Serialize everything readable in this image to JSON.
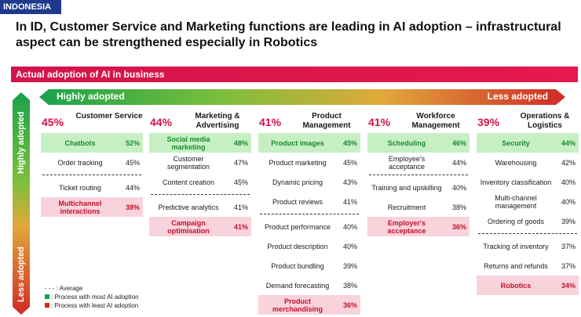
{
  "country": "INDONESIA",
  "title": "In ID, Customer Service and Marketing functions are leading in AI adoption – infrastructural aspect can be strengthened especially in Robotics",
  "banner": "Actual adoption of AI in business",
  "horizontal_axis": {
    "left": "Highly adopted",
    "right": "Less adopted"
  },
  "vertical_axis": {
    "top": "Highly adopted",
    "bottom": "Less adopted"
  },
  "colors": {
    "accent": "#d3134a",
    "most_adoption": "#1d8a2e",
    "least_adoption": "#c0112b"
  },
  "legend": {
    "average": "- - - : Average",
    "most": ": Process with most AI adoption",
    "least": ": Process with least AI adoption"
  },
  "columns": [
    {
      "pct": "45%",
      "name": "Customer Service",
      "rows": [
        {
          "type": "top",
          "name": "Chatbots",
          "value": "52%"
        },
        {
          "type": "row",
          "name": "Order tracking",
          "value": "45%"
        },
        {
          "type": "avg"
        },
        {
          "type": "row",
          "name": "Ticket routing",
          "value": "44%"
        },
        {
          "type": "least",
          "name": "Multichannel interactions",
          "value": "38%"
        }
      ]
    },
    {
      "pct": "44%",
      "name": "Marketing & Advertising",
      "rows": [
        {
          "type": "top",
          "name": "Social media marketing",
          "value": "48%"
        },
        {
          "type": "row",
          "name": "Customer segmentation",
          "value": "47%"
        },
        {
          "type": "row",
          "name": "Content creation",
          "value": "45%"
        },
        {
          "type": "avg"
        },
        {
          "type": "row",
          "name": "Predictive analytics",
          "value": "41%"
        },
        {
          "type": "least",
          "name": "Campaign optimisation",
          "value": "41%"
        }
      ]
    },
    {
      "pct": "41%",
      "name": "Product Management",
      "rows": [
        {
          "type": "top",
          "name": "Product images",
          "value": "45%"
        },
        {
          "type": "row",
          "name": "Product marketing",
          "value": "45%"
        },
        {
          "type": "row",
          "name": "Dynamic pricing",
          "value": "43%"
        },
        {
          "type": "row",
          "name": "Product reviews",
          "value": "41%"
        },
        {
          "type": "avg"
        },
        {
          "type": "row",
          "name": "Product performance",
          "value": "40%"
        },
        {
          "type": "row",
          "name": "Product description",
          "value": "40%"
        },
        {
          "type": "row",
          "name": "Product bundling",
          "value": "39%"
        },
        {
          "type": "row",
          "name": "Demand forecasting",
          "value": "38%"
        },
        {
          "type": "least",
          "name": "Product merchandising",
          "value": "36%"
        }
      ]
    },
    {
      "pct": "41%",
      "name": "Workforce Management",
      "rows": [
        {
          "type": "top",
          "name": "Scheduling",
          "value": "46%"
        },
        {
          "type": "row",
          "name": "Employee's acceptance",
          "value": "44%"
        },
        {
          "type": "avg"
        },
        {
          "type": "row",
          "name": "Training and upskilling",
          "value": "40%"
        },
        {
          "type": "row",
          "name": "Recruitment",
          "value": "38%"
        },
        {
          "type": "least",
          "name": "Employer's acceptance",
          "value": "36%"
        }
      ]
    },
    {
      "pct": "39%",
      "name": "Operations & Logistics",
      "rows": [
        {
          "type": "top",
          "name": "Security",
          "value": "44%"
        },
        {
          "type": "row",
          "name": "Warehousing",
          "value": "42%"
        },
        {
          "type": "row",
          "name": "Inventory classification",
          "value": "40%"
        },
        {
          "type": "row",
          "name": "Multi-channel management",
          "value": "40%"
        },
        {
          "type": "row",
          "name": "Ordering of goods",
          "value": "39%"
        },
        {
          "type": "avg"
        },
        {
          "type": "row",
          "name": "Tracking of inventory",
          "value": "37%"
        },
        {
          "type": "row",
          "name": "Returns and refunds",
          "value": "37%"
        },
        {
          "type": "least",
          "name": "Robotics",
          "value": "34%"
        }
      ]
    }
  ]
}
